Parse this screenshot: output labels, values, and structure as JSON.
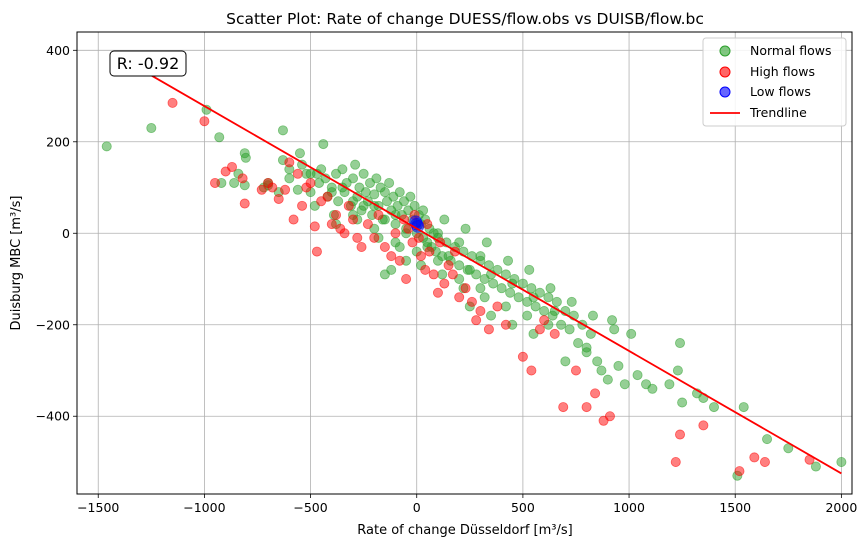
{
  "chart_data": {
    "type": "scatter",
    "title": "Scatter Plot: Rate of change DUESS/flow.obs vs DUISB/flow.bc",
    "xlabel": "Rate of change Düsseldorf [m³/s]",
    "ylabel": "Duisburg MBC [m³/s]",
    "xlim": [
      -1600,
      2050
    ],
    "ylim": [
      -570,
      440
    ],
    "xticks": [
      -1500,
      -1000,
      -500,
      0,
      500,
      1000,
      1500,
      2000
    ],
    "yticks": [
      -400,
      -200,
      0,
      200,
      400
    ],
    "xtick_labels": [
      "−1500",
      "−1000",
      "−500",
      "0",
      "500",
      "1000",
      "1500",
      "2000"
    ],
    "ytick_labels": [
      "−400",
      "−200",
      "0",
      "200",
      "400"
    ],
    "grid": true,
    "legend_position": "top-right",
    "annotation": "R: -0.92",
    "series": [
      {
        "name": "Normal flows",
        "color": "#2ca02c",
        "points": [
          [
            -1460,
            190
          ],
          [
            -1250,
            230
          ],
          [
            -990,
            270
          ],
          [
            -930,
            210
          ],
          [
            -920,
            110
          ],
          [
            -860,
            110
          ],
          [
            -840,
            130
          ],
          [
            -810,
            175
          ],
          [
            -805,
            165
          ],
          [
            -810,
            105
          ],
          [
            -720,
            100
          ],
          [
            -700,
            105
          ],
          [
            -650,
            90
          ],
          [
            -630,
            225
          ],
          [
            -630,
            160
          ],
          [
            -600,
            120
          ],
          [
            -560,
            95
          ],
          [
            -550,
            175
          ],
          [
            -540,
            150
          ],
          [
            -520,
            130
          ],
          [
            -500,
            90
          ],
          [
            -480,
            60
          ],
          [
            -470,
            130
          ],
          [
            -460,
            110
          ],
          [
            -440,
            195
          ],
          [
            -430,
            120
          ],
          [
            -420,
            80
          ],
          [
            -400,
            100
          ],
          [
            -390,
            40
          ],
          [
            -380,
            130
          ],
          [
            -370,
            70
          ],
          [
            -350,
            140
          ],
          [
            -340,
            90
          ],
          [
            -330,
            110
          ],
          [
            -310,
            60
          ],
          [
            -300,
            120
          ],
          [
            -290,
            150
          ],
          [
            -280,
            80
          ],
          [
            -270,
            100
          ],
          [
            -260,
            50
          ],
          [
            -250,
            130
          ],
          [
            -240,
            90
          ],
          [
            -230,
            70
          ],
          [
            -220,
            110
          ],
          [
            -210,
            40
          ],
          [
            -200,
            85
          ],
          [
            -190,
            120
          ],
          [
            -180,
            60
          ],
          [
            -170,
            100
          ],
          [
            -160,
            30
          ],
          [
            -150,
            90
          ],
          [
            -140,
            70
          ],
          [
            -130,
            110
          ],
          [
            -120,
            50
          ],
          [
            -110,
            80
          ],
          [
            -100,
            20
          ],
          [
            -90,
            60
          ],
          [
            -80,
            90
          ],
          [
            -70,
            40
          ],
          [
            -60,
            70
          ],
          [
            -50,
            10
          ],
          [
            -40,
            50
          ],
          [
            -30,
            80
          ],
          [
            -20,
            30
          ],
          [
            -10,
            60
          ],
          [
            0,
            0
          ],
          [
            10,
            40
          ],
          [
            20,
            20
          ],
          [
            30,
            -10
          ],
          [
            40,
            30
          ],
          [
            50,
            -20
          ],
          [
            60,
            10
          ],
          [
            70,
            -30
          ],
          [
            80,
            0
          ],
          [
            90,
            -40
          ],
          [
            100,
            -10
          ],
          [
            120,
            -50
          ],
          [
            140,
            -20
          ],
          [
            160,
            -60
          ],
          [
            180,
            -30
          ],
          [
            200,
            -70
          ],
          [
            220,
            -40
          ],
          [
            240,
            -80
          ],
          [
            260,
            -50
          ],
          [
            280,
            -90
          ],
          [
            300,
            -60
          ],
          [
            320,
            -100
          ],
          [
            340,
            -70
          ],
          [
            360,
            -110
          ],
          [
            380,
            -80
          ],
          [
            400,
            -120
          ],
          [
            420,
            -90
          ],
          [
            440,
            -130
          ],
          [
            460,
            -100
          ],
          [
            480,
            -140
          ],
          [
            500,
            -110
          ],
          [
            520,
            -150
          ],
          [
            540,
            -120
          ],
          [
            560,
            -160
          ],
          [
            580,
            -130
          ],
          [
            600,
            -170
          ],
          [
            620,
            -140
          ],
          [
            640,
            -180
          ],
          [
            660,
            -150
          ],
          [
            680,
            -200
          ],
          [
            700,
            -170
          ],
          [
            720,
            -210
          ],
          [
            740,
            -180
          ],
          [
            760,
            -240
          ],
          [
            780,
            -200
          ],
          [
            800,
            -250
          ],
          [
            820,
            -220
          ],
          [
            850,
            -280
          ],
          [
            870,
            -300
          ],
          [
            900,
            -320
          ],
          [
            920,
            -190
          ],
          [
            950,
            -290
          ],
          [
            980,
            -330
          ],
          [
            1010,
            -220
          ],
          [
            1040,
            -310
          ],
          [
            1080,
            -330
          ],
          [
            1110,
            -340
          ],
          [
            1190,
            -330
          ],
          [
            1230,
            -300
          ],
          [
            1240,
            -240
          ],
          [
            1250,
            -370
          ],
          [
            1320,
            -350
          ],
          [
            1350,
            -360
          ],
          [
            1400,
            -380
          ],
          [
            1510,
            -530
          ],
          [
            1540,
            -380
          ],
          [
            1650,
            -450
          ],
          [
            1750,
            -470
          ],
          [
            1880,
            -510
          ],
          [
            2000,
            -500
          ],
          [
            -300,
            40
          ],
          [
            -200,
            10
          ],
          [
            -100,
            -20
          ],
          [
            0,
            -40
          ],
          [
            100,
            -60
          ],
          [
            200,
            -100
          ],
          [
            300,
            -120
          ],
          [
            -450,
            140
          ],
          [
            -350,
            100
          ],
          [
            -250,
            60
          ],
          [
            -150,
            30
          ],
          [
            -50,
            0
          ],
          [
            50,
            -30
          ],
          [
            150,
            -50
          ],
          [
            250,
            -80
          ],
          [
            350,
            -90
          ],
          [
            450,
            -110
          ],
          [
            550,
            -140
          ],
          [
            650,
            -170
          ],
          [
            -700,
            110
          ],
          [
            -600,
            140
          ],
          [
            -500,
            130
          ],
          [
            -400,
            90
          ],
          [
            -300,
            70
          ],
          [
            -200,
            60
          ],
          [
            -100,
            40
          ],
          [
            0,
            20
          ],
          [
            100,
            0
          ],
          [
            200,
            -20
          ],
          [
            300,
            -50
          ],
          [
            -120,
            -80
          ],
          [
            -150,
            -90
          ],
          [
            -50,
            -60
          ],
          [
            20,
            -70
          ],
          [
            120,
            -90
          ],
          [
            220,
            -120
          ],
          [
            320,
            -140
          ],
          [
            420,
            -160
          ],
          [
            520,
            -180
          ],
          [
            620,
            -200
          ],
          [
            -380,
            20
          ],
          [
            -280,
            30
          ],
          [
            -180,
            -10
          ],
          [
            -80,
            -30
          ],
          [
            30,
            50
          ],
          [
            130,
            30
          ],
          [
            230,
            10
          ],
          [
            330,
            -20
          ],
          [
            430,
            -60
          ],
          [
            530,
            -80
          ],
          [
            630,
            -120
          ],
          [
            730,
            -150
          ],
          [
            830,
            -180
          ],
          [
            930,
            -210
          ],
          [
            250,
            -160
          ],
          [
            350,
            -180
          ],
          [
            450,
            -200
          ],
          [
            550,
            -220
          ],
          [
            700,
            -280
          ],
          [
            800,
            -260
          ]
        ]
      },
      {
        "name": "High flows",
        "color": "#ff0000",
        "points": [
          [
            -1150,
            285
          ],
          [
            -1000,
            245
          ],
          [
            -950,
            110
          ],
          [
            -900,
            135
          ],
          [
            -870,
            145
          ],
          [
            -820,
            120
          ],
          [
            -810,
            65
          ],
          [
            -730,
            95
          ],
          [
            -700,
            110
          ],
          [
            -680,
            100
          ],
          [
            -650,
            75
          ],
          [
            -620,
            95
          ],
          [
            -600,
            155
          ],
          [
            -580,
            30
          ],
          [
            -560,
            130
          ],
          [
            -540,
            60
          ],
          [
            -520,
            100
          ],
          [
            -500,
            110
          ],
          [
            -480,
            15
          ],
          [
            -470,
            -40
          ],
          [
            -450,
            70
          ],
          [
            -420,
            80
          ],
          [
            -400,
            20
          ],
          [
            -380,
            40
          ],
          [
            -360,
            10
          ],
          [
            -340,
            0
          ],
          [
            -320,
            60
          ],
          [
            -300,
            30
          ],
          [
            -280,
            -10
          ],
          [
            -260,
            -30
          ],
          [
            -230,
            20
          ],
          [
            -200,
            -10
          ],
          [
            -180,
            40
          ],
          [
            -150,
            -30
          ],
          [
            -120,
            -50
          ],
          [
            -100,
            0
          ],
          [
            -80,
            -60
          ],
          [
            -60,
            30
          ],
          [
            -40,
            10
          ],
          [
            -20,
            -20
          ],
          [
            20,
            -50
          ],
          [
            40,
            -80
          ],
          [
            60,
            -40
          ],
          [
            80,
            -90
          ],
          [
            100,
            -130
          ],
          [
            130,
            -110
          ],
          [
            150,
            -70
          ],
          [
            170,
            -90
          ],
          [
            200,
            -140
          ],
          [
            230,
            -120
          ],
          [
            260,
            -150
          ],
          [
            280,
            -190
          ],
          [
            300,
            -170
          ],
          [
            340,
            -210
          ],
          [
            380,
            -160
          ],
          [
            420,
            -200
          ],
          [
            500,
            -270
          ],
          [
            540,
            -300
          ],
          [
            580,
            -210
          ],
          [
            600,
            -190
          ],
          [
            650,
            -220
          ],
          [
            690,
            -380
          ],
          [
            750,
            -300
          ],
          [
            800,
            -380
          ],
          [
            840,
            -350
          ],
          [
            880,
            -410
          ],
          [
            910,
            -400
          ],
          [
            1220,
            -500
          ],
          [
            1240,
            -440
          ],
          [
            1350,
            -420
          ],
          [
            1520,
            -520
          ],
          [
            1590,
            -490
          ],
          [
            1640,
            -500
          ],
          [
            1850,
            -495
          ],
          [
            -50,
            -100
          ],
          [
            -10,
            40
          ],
          [
            10,
            -10
          ],
          [
            50,
            20
          ],
          [
            110,
            -20
          ],
          [
            180,
            -40
          ]
        ]
      },
      {
        "name": "Low flows",
        "color": "#0000ff",
        "points": [
          [
            0,
            20
          ],
          [
            5,
            15
          ],
          [
            -5,
            25
          ]
        ]
      }
    ],
    "trendline": {
      "name": "Trendline",
      "color": "#ff0000",
      "x": [
        -1250,
        2000
      ],
      "y": [
        345,
        -525
      ]
    },
    "legend": [
      "Normal flows",
      "High flows",
      "Low flows",
      "Trendline"
    ]
  }
}
